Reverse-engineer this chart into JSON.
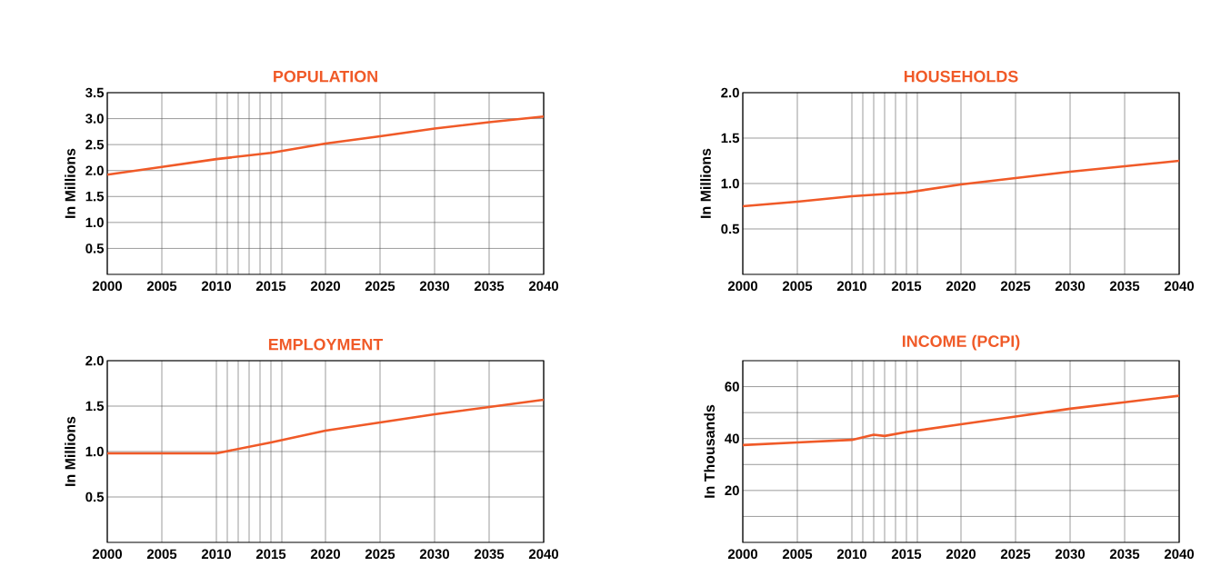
{
  "chart_data": [
    {
      "type": "line",
      "title": "POPULATION",
      "ylabel": "In Millions",
      "color": "#f05a28",
      "grid": true,
      "x": [
        2000,
        2005,
        2010,
        2015,
        2020,
        2025,
        2030,
        2035,
        2040
      ],
      "values": [
        1.92,
        2.07,
        2.22,
        2.34,
        2.52,
        2.66,
        2.81,
        2.93,
        3.04
      ],
      "xlim": [
        2000,
        2040
      ],
      "ylim": [
        0,
        3.5
      ],
      "xticks": [
        2000,
        2005,
        2010,
        {
          "value": 2011,
          "label": null
        },
        {
          "value": 2012,
          "label": null
        },
        {
          "value": 2013,
          "label": null
        },
        {
          "value": 2014,
          "label": null
        },
        2015,
        {
          "value": 2016,
          "label": null
        },
        2020,
        2025,
        2030,
        2035,
        2040
      ],
      "yticks": [
        0.5,
        {
          "value": 1.0,
          "label": "1.0"
        },
        1.5,
        {
          "value": 2.0,
          "label": "2.0"
        },
        2.5,
        {
          "value": 3.0,
          "label": "3.0"
        },
        3.5
      ]
    },
    {
      "type": "line",
      "title": "HOUSEHOLDS",
      "ylabel": "In Millions",
      "color": "#f05a28",
      "grid": true,
      "x": [
        2000,
        2005,
        2010,
        2015,
        2020,
        2025,
        2030,
        2035,
        2040
      ],
      "values": [
        0.75,
        0.8,
        0.86,
        0.9,
        0.99,
        1.06,
        1.13,
        1.19,
        1.25
      ],
      "xlim": [
        2000,
        2040
      ],
      "ylim": [
        0,
        2.0
      ],
      "xticks": [
        2000,
        2005,
        2010,
        {
          "value": 2011,
          "label": null
        },
        {
          "value": 2012,
          "label": null
        },
        {
          "value": 2013,
          "label": null
        },
        {
          "value": 2014,
          "label": null
        },
        2015,
        {
          "value": 2016,
          "label": null
        },
        2020,
        2025,
        2030,
        2035,
        2040
      ],
      "yticks": [
        0.5,
        {
          "value": 1.0,
          "label": "1.0"
        },
        1.5,
        {
          "value": 2.0,
          "label": "2.0"
        }
      ]
    },
    {
      "type": "line",
      "title": "EMPLOYMENT",
      "ylabel": "In Millions",
      "color": "#f05a28",
      "grid": true,
      "x": [
        2000,
        2005,
        2010,
        2015,
        2020,
        2025,
        2030,
        2035,
        2040
      ],
      "values": [
        0.98,
        0.98,
        0.98,
        1.1,
        1.23,
        1.32,
        1.41,
        1.49,
        1.57
      ],
      "xlim": [
        2000,
        2040
      ],
      "ylim": [
        0,
        2.0
      ],
      "xticks": [
        2000,
        2005,
        2010,
        {
          "value": 2011,
          "label": null
        },
        {
          "value": 2012,
          "label": null
        },
        {
          "value": 2013,
          "label": null
        },
        {
          "value": 2014,
          "label": null
        },
        2015,
        {
          "value": 2016,
          "label": null
        },
        2020,
        2025,
        2030,
        2035,
        2040
      ],
      "yticks": [
        0.5,
        {
          "value": 1.0,
          "label": "1.0"
        },
        1.5,
        {
          "value": 2.0,
          "label": "2.0"
        }
      ]
    },
    {
      "type": "line",
      "title": "INCOME (PCPI)",
      "ylabel": "In Thousands",
      "color": "#f05a28",
      "grid": true,
      "x": [
        2000,
        2005,
        2010,
        2012,
        2013,
        2015,
        2020,
        2025,
        2030,
        2035,
        2040
      ],
      "values": [
        37.5,
        38.5,
        39.5,
        41.5,
        41,
        42.5,
        45.5,
        48.5,
        51.5,
        54,
        56.5
      ],
      "xlim": [
        2000,
        2040
      ],
      "ylim": [
        0,
        70
      ],
      "xticks": [
        2000,
        2005,
        2010,
        {
          "value": 2011,
          "label": null
        },
        {
          "value": 2012,
          "label": null
        },
        {
          "value": 2013,
          "label": null
        },
        {
          "value": 2014,
          "label": null
        },
        2015,
        {
          "value": 2016,
          "label": null
        },
        2020,
        2025,
        2030,
        2035,
        2040
      ],
      "yticks": [
        {
          "value": 10,
          "label": null
        },
        20,
        {
          "value": 30,
          "label": null
        },
        40,
        {
          "value": 50,
          "label": null
        },
        60
      ]
    }
  ]
}
